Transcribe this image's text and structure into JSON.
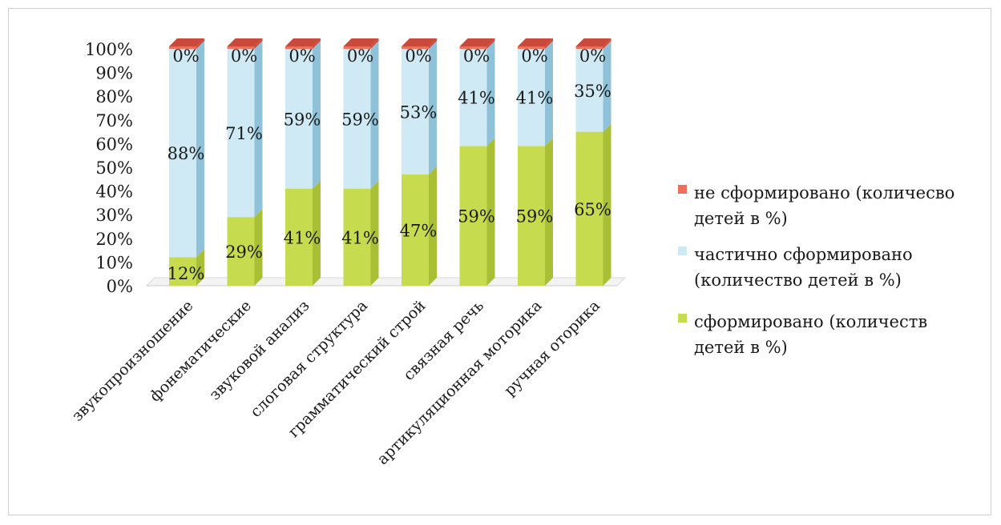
{
  "chart_data": {
    "type": "bar",
    "stacked": true,
    "percent_stacked": true,
    "style": "3d-column",
    "categories": [
      "звукопроизношение",
      "фонематические",
      "звуковой анализ",
      "слоговая структура",
      "грамматический строй",
      "связная речь",
      "артикуляционная моторика",
      "ручная оторика"
    ],
    "series": [
      {
        "name": "сформировано (количеств детей в %)",
        "color": "#c6dc4e",
        "side": "#a9bf35",
        "values": [
          12,
          29,
          41,
          41,
          47,
          59,
          59,
          65
        ],
        "labels": [
          "12%",
          "29%",
          "41%",
          "41%",
          "47%",
          "59%",
          "59%",
          "65%"
        ]
      },
      {
        "name": "частично сформировано (количество детей в %)",
        "color": "#cfeaf4",
        "side": "#8fc2d8",
        "values": [
          88,
          71,
          59,
          59,
          53,
          41,
          41,
          35
        ],
        "labels": [
          "88%",
          "71%",
          "59%",
          "59%",
          "53%",
          "41%",
          "41%",
          "35%"
        ]
      },
      {
        "name": "не сформировано (количесво детей в %)",
        "color": "#ee6f5c",
        "side": "#c94a3a",
        "values": [
          0,
          0,
          0,
          0,
          0,
          0,
          0,
          0
        ],
        "labels": [
          "0%",
          "0%",
          "0%",
          "0%",
          "0%",
          "0%",
          "0%",
          "0%"
        ]
      }
    ],
    "yticks": [
      "0%",
      "10%",
      "20%",
      "30%",
      "40%",
      "50%",
      "60%",
      "70%",
      "80%",
      "90%",
      "100%"
    ],
    "ylim": [
      0,
      100
    ],
    "legend_position": "right",
    "legend": [
      {
        "lines": [
          "не сформировано (количесво",
          "детей в %)"
        ],
        "color": "#ee6f5c"
      },
      {
        "lines": [
          "частично сформировано",
          "(количество детей в %)"
        ],
        "color": "#cfeaf4"
      },
      {
        "lines": [
          "сформировано (количеств",
          "детей в %)"
        ],
        "color": "#c6dc4e"
      }
    ]
  }
}
